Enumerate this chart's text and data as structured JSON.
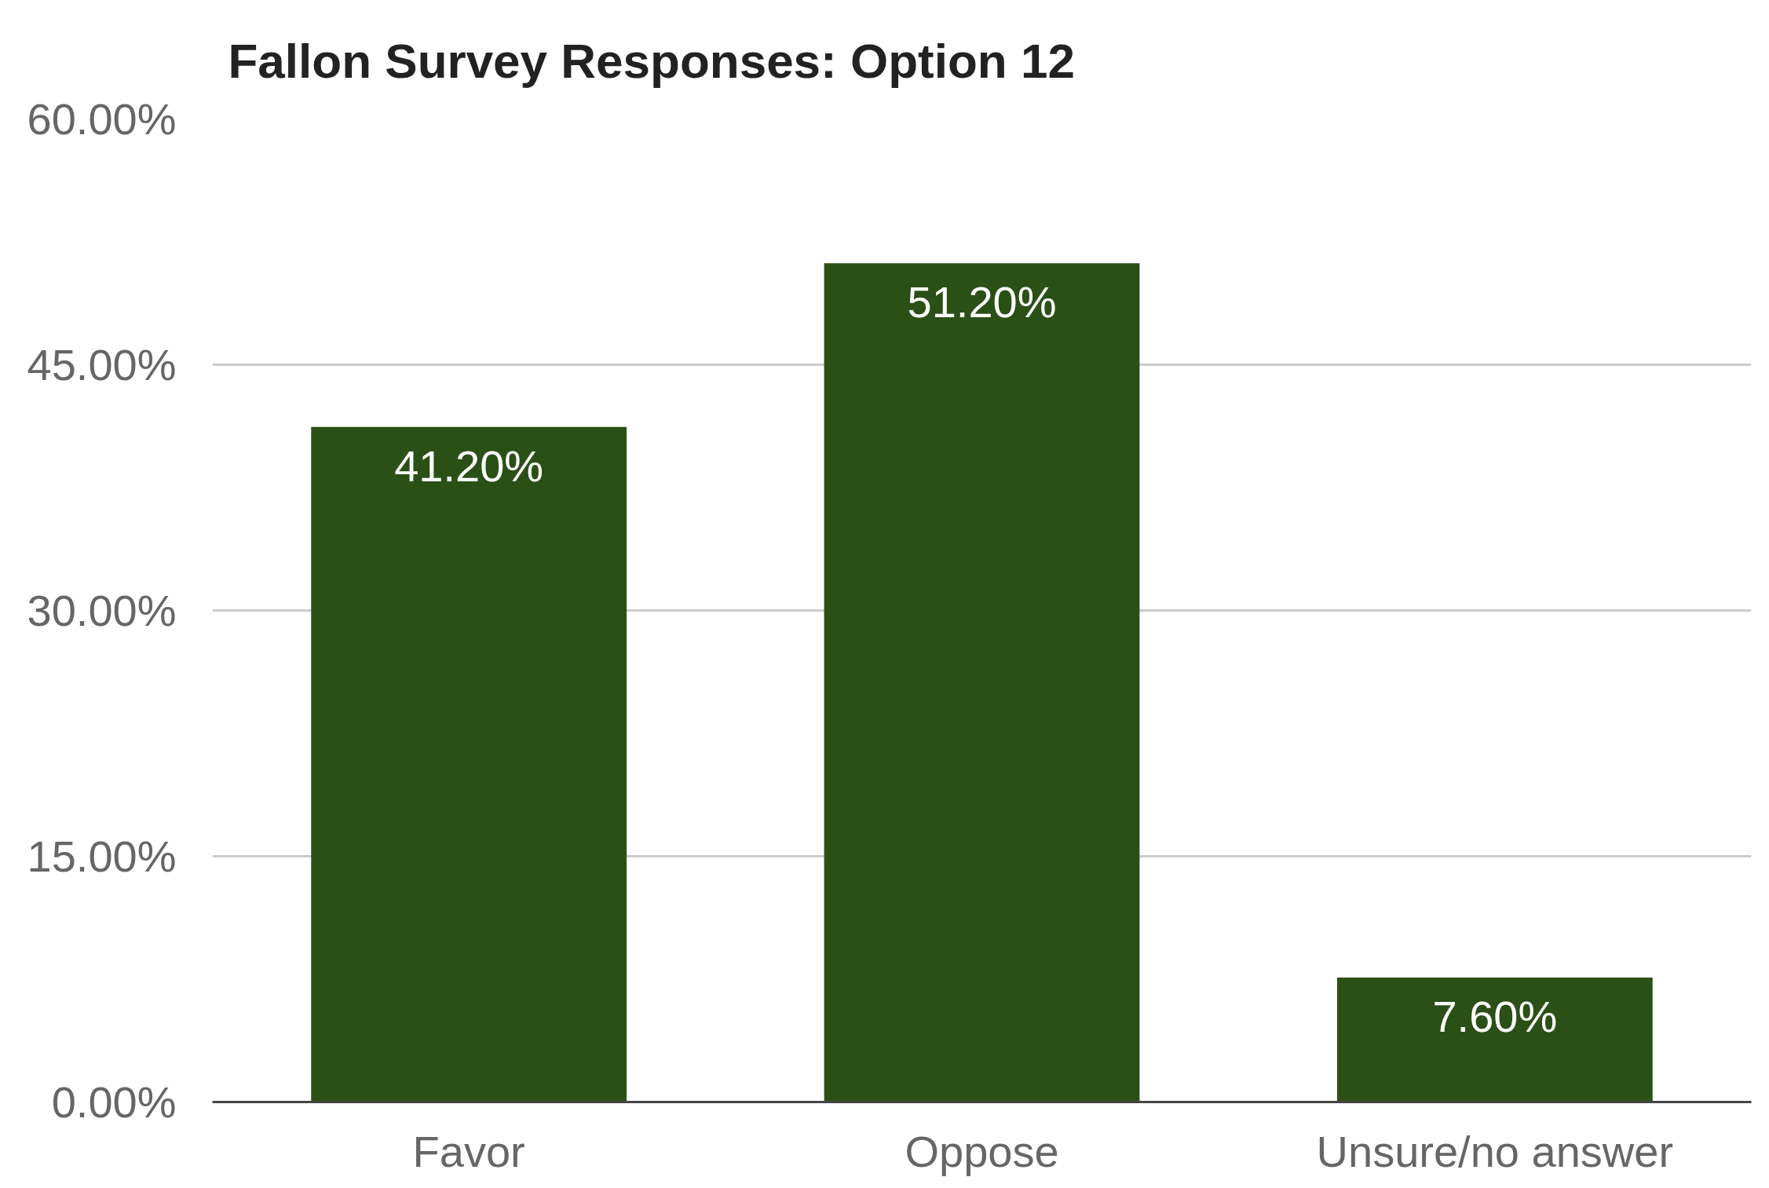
{
  "chart_data": {
    "type": "bar",
    "title": "Fallon Survey Responses: Option 12",
    "categories": [
      "Favor",
      "Oppose",
      "Unsure/no answer"
    ],
    "values": [
      41.2,
      51.2,
      7.6
    ],
    "value_labels": [
      "41.20%",
      "51.20%",
      "7.60%"
    ],
    "color": "#2a5016",
    "ylim": [
      0,
      60
    ],
    "yticks": [
      {
        "value": 0,
        "label": "0.00%"
      },
      {
        "value": 15,
        "label": "15.00%"
      },
      {
        "value": 30,
        "label": "30.00%"
      },
      {
        "value": 45,
        "label": "45.00%"
      },
      {
        "value": 60,
        "label": "60.00%"
      }
    ],
    "grid": "y"
  }
}
